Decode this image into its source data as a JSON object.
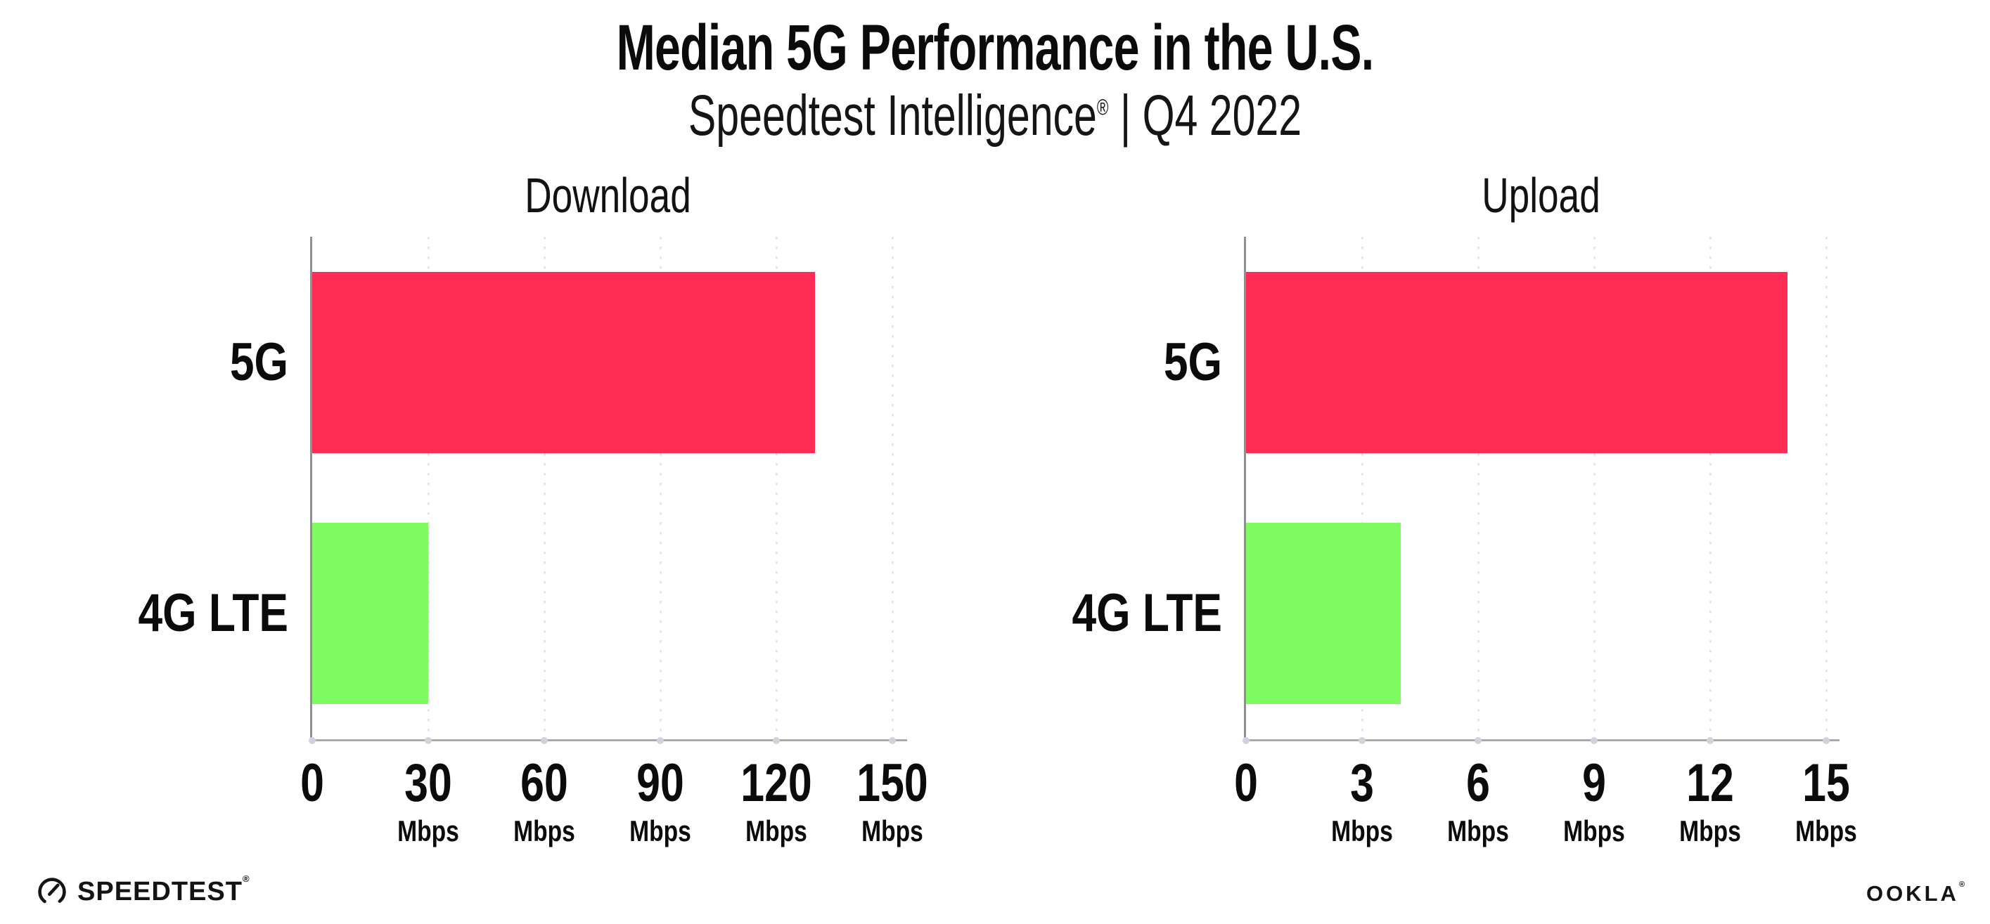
{
  "header": {
    "title": "Median 5G Performance in the U.S.",
    "subtitle_brand": "Speedtest Intelligence",
    "subtitle_reg": "®",
    "subtitle_rest": " | Q4 2022"
  },
  "footer": {
    "speedtest_label": "SPEEDTEST",
    "speedtest_reg": "®",
    "ookla_label": "OOKLA",
    "ookla_reg": "®"
  },
  "colors": {
    "bar_5g": "#FF2D55",
    "bar_4g_lte": "#80FB61",
    "gridline": "#E4E3EE",
    "axis_line": "#ABABAB",
    "y_spine": "#8F8F8F",
    "tick_dot": "#D2D1DE",
    "text": "#0B0B0B"
  },
  "chart_data": [
    {
      "type": "bar",
      "orientation": "horizontal",
      "title": "Download",
      "categories": [
        "5G",
        "4G LTE"
      ],
      "values": [
        130,
        30
      ],
      "unit": "Mbps",
      "xticks": [
        0,
        30,
        60,
        90,
        120,
        150
      ],
      "xlim": [
        0,
        152.9
      ],
      "bar_colors": [
        "#FF2D55",
        "#80FB61"
      ],
      "grid": "dotted-vertical",
      "legend": "none"
    },
    {
      "type": "bar",
      "orientation": "horizontal",
      "title": "Upload",
      "categories": [
        "5G",
        "4G LTE"
      ],
      "values": [
        14,
        4
      ],
      "unit": "Mbps",
      "xticks": [
        0,
        3,
        6,
        9,
        12,
        15
      ],
      "xlim": [
        0,
        15.25
      ],
      "bar_colors": [
        "#FF2D55",
        "#80FB61"
      ],
      "grid": "dotted-vertical",
      "legend": "none"
    }
  ]
}
